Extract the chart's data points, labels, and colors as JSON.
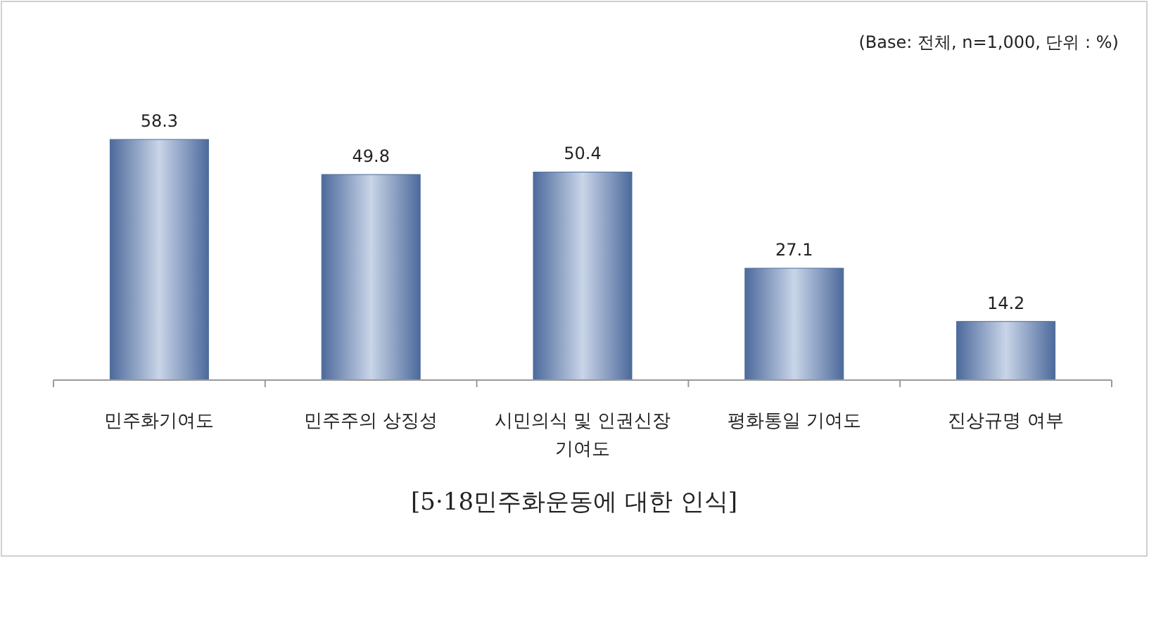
{
  "chart_data": {
    "type": "bar",
    "title": "[5·18민주화운동에 대한 인식]",
    "annotations": [
      "(Base: 전체, n=1,000, 단위 : %)"
    ],
    "categories": [
      "민주화기여도",
      "민주주의 상징성",
      "시민의식 및 인권신장 기여도",
      "평화통일 기여도",
      "진상규명 여부"
    ],
    "values": [
      58.3,
      49.8,
      50.4,
      27.1,
      14.2
    ],
    "color": "#4d6a9c",
    "data_labels": true
  }
}
